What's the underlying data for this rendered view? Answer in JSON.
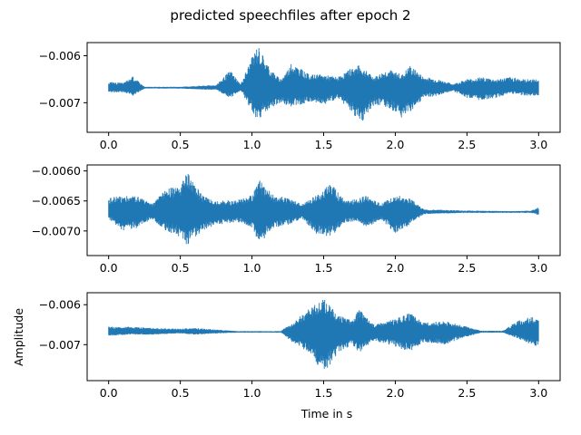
{
  "figure": {
    "suptitle": "predicted speechfiles after epoch 2",
    "xlabel": "Time in s",
    "ylabel": "Amplitude"
  },
  "colors": {
    "line": "#1f77b4",
    "axes": "#000000",
    "background": "#ffffff"
  },
  "chart_data": [
    {
      "type": "line",
      "title": "",
      "xlabel": "",
      "ylabel": "",
      "xlim": [
        -0.15,
        3.15
      ],
      "ylim": [
        -0.00763,
        -0.00572
      ],
      "x_ticks": [
        0.0,
        0.5,
        1.0,
        1.5,
        2.0,
        2.5,
        3.0
      ],
      "x_tick_labels": [
        "0.0",
        "0.5",
        "1.0",
        "1.5",
        "2.0",
        "2.5",
        "3.0"
      ],
      "y_ticks": [
        -0.006,
        -0.007
      ],
      "y_tick_labels": [
        "−0.006",
        "−0.007"
      ],
      "grid": false,
      "baseline": -0.00668,
      "envelope": [
        {
          "t": 0.0,
          "min": -0.00679,
          "max": -0.00655
        },
        {
          "t": 0.1,
          "min": -0.00678,
          "max": -0.00658
        },
        {
          "t": 0.17,
          "min": -0.00685,
          "max": -0.00644
        },
        {
          "t": 0.25,
          "min": -0.0067,
          "max": -0.00666
        },
        {
          "t": 0.5,
          "min": -0.0067,
          "max": -0.00666
        },
        {
          "t": 0.75,
          "min": -0.00673,
          "max": -0.00662
        },
        {
          "t": 0.85,
          "min": -0.0069,
          "max": -0.0063
        },
        {
          "t": 0.92,
          "min": -0.00674,
          "max": -0.0066
        },
        {
          "t": 1.04,
          "min": -0.0074,
          "max": -0.00575
        },
        {
          "t": 1.12,
          "min": -0.00715,
          "max": -0.00625
        },
        {
          "t": 1.2,
          "min": -0.007,
          "max": -0.0065
        },
        {
          "t": 1.28,
          "min": -0.0071,
          "max": -0.00615
        },
        {
          "t": 1.4,
          "min": -0.00698,
          "max": -0.0064
        },
        {
          "t": 1.5,
          "min": -0.00705,
          "max": -0.0064
        },
        {
          "t": 1.6,
          "min": -0.0069,
          "max": -0.00645
        },
        {
          "t": 1.7,
          "min": -0.0072,
          "max": -0.00625
        },
        {
          "t": 1.75,
          "min": -0.0075,
          "max": -0.0062
        },
        {
          "t": 1.85,
          "min": -0.00705,
          "max": -0.00645
        },
        {
          "t": 1.95,
          "min": -0.0071,
          "max": -0.00628
        },
        {
          "t": 2.05,
          "min": -0.00735,
          "max": -0.0064
        },
        {
          "t": 2.1,
          "min": -0.0072,
          "max": -0.0062
        },
        {
          "t": 2.2,
          "min": -0.0069,
          "max": -0.00645
        },
        {
          "t": 2.3,
          "min": -0.00685,
          "max": -0.0065
        },
        {
          "t": 2.4,
          "min": -0.00675,
          "max": -0.0066
        },
        {
          "t": 2.5,
          "min": -0.0069,
          "max": -0.0065
        },
        {
          "t": 2.6,
          "min": -0.00695,
          "max": -0.00645
        },
        {
          "t": 2.7,
          "min": -0.0069,
          "max": -0.0065
        },
        {
          "t": 2.8,
          "min": -0.0068,
          "max": -0.00645
        },
        {
          "t": 2.9,
          "min": -0.00685,
          "max": -0.0065
        },
        {
          "t": 3.0,
          "min": -0.00685,
          "max": -0.0065
        }
      ]
    },
    {
      "type": "line",
      "title": "",
      "xlabel": "",
      "ylabel": "",
      "xlim": [
        -0.15,
        3.15
      ],
      "ylim": [
        -0.00741,
        -0.0059
      ],
      "x_ticks": [
        0.0,
        0.5,
        1.0,
        1.5,
        2.0,
        2.5,
        3.0
      ],
      "x_tick_labels": [
        "0.0",
        "0.5",
        "1.0",
        "1.5",
        "2.0",
        "2.5",
        "3.0"
      ],
      "y_ticks": [
        -0.006,
        -0.0065,
        -0.007
      ],
      "y_tick_labels": [
        "−0.0060",
        "−0.0065",
        "−0.0070"
      ],
      "grid": false,
      "baseline": -0.00668,
      "envelope": [
        {
          "t": 0.0,
          "min": -0.0068,
          "max": -0.00645
        },
        {
          "t": 0.1,
          "min": -0.007,
          "max": -0.0064
        },
        {
          "t": 0.2,
          "min": -0.00695,
          "max": -0.0064
        },
        {
          "t": 0.3,
          "min": -0.0068,
          "max": -0.00655
        },
        {
          "t": 0.4,
          "min": -0.007,
          "max": -0.0063
        },
        {
          "t": 0.5,
          "min": -0.0071,
          "max": -0.00625
        },
        {
          "t": 0.55,
          "min": -0.00725,
          "max": -0.006
        },
        {
          "t": 0.65,
          "min": -0.007,
          "max": -0.0064
        },
        {
          "t": 0.75,
          "min": -0.0069,
          "max": -0.0065
        },
        {
          "t": 0.9,
          "min": -0.00685,
          "max": -0.00648
        },
        {
          "t": 1.0,
          "min": -0.00695,
          "max": -0.0064
        },
        {
          "t": 1.05,
          "min": -0.00725,
          "max": -0.00615
        },
        {
          "t": 1.15,
          "min": -0.00695,
          "max": -0.0064
        },
        {
          "t": 1.25,
          "min": -0.0069,
          "max": -0.00645
        },
        {
          "t": 1.35,
          "min": -0.0068,
          "max": -0.00655
        },
        {
          "t": 1.45,
          "min": -0.00705,
          "max": -0.0064
        },
        {
          "t": 1.55,
          "min": -0.0071,
          "max": -0.0062
        },
        {
          "t": 1.65,
          "min": -0.00685,
          "max": -0.0065
        },
        {
          "t": 1.75,
          "min": -0.00685,
          "max": -0.00645
        },
        {
          "t": 1.8,
          "min": -0.00695,
          "max": -0.0064
        },
        {
          "t": 1.9,
          "min": -0.0068,
          "max": -0.00655
        },
        {
          "t": 2.0,
          "min": -0.00705,
          "max": -0.0064
        },
        {
          "t": 2.1,
          "min": -0.0069,
          "max": -0.00645
        },
        {
          "t": 2.2,
          "min": -0.00672,
          "max": -0.00664
        },
        {
          "t": 2.5,
          "min": -0.0067,
          "max": -0.00666
        },
        {
          "t": 2.8,
          "min": -0.0067,
          "max": -0.00667
        },
        {
          "t": 2.95,
          "min": -0.0067,
          "max": -0.00666
        },
        {
          "t": 3.0,
          "min": -0.00674,
          "max": -0.0066
        }
      ]
    },
    {
      "type": "line",
      "title": "",
      "xlabel": "Time in s",
      "ylabel": "Amplitude",
      "xlim": [
        -0.15,
        3.15
      ],
      "ylim": [
        -0.0079,
        -0.0057
      ],
      "x_ticks": [
        0.0,
        0.5,
        1.0,
        1.5,
        2.0,
        2.5,
        3.0
      ],
      "x_tick_labels": [
        "0.0",
        "0.5",
        "1.0",
        "1.5",
        "2.0",
        "2.5",
        "3.0"
      ],
      "y_ticks": [
        -0.006,
        -0.007
      ],
      "y_tick_labels": [
        "−0.006",
        "−0.007"
      ],
      "grid": false,
      "baseline": -0.00668,
      "envelope": [
        {
          "t": 0.0,
          "min": -0.00678,
          "max": -0.00655
        },
        {
          "t": 0.15,
          "min": -0.00675,
          "max": -0.00655
        },
        {
          "t": 0.3,
          "min": -0.00675,
          "max": -0.00658
        },
        {
          "t": 0.5,
          "min": -0.00672,
          "max": -0.0066
        },
        {
          "t": 0.6,
          "min": -0.00675,
          "max": -0.00658
        },
        {
          "t": 0.75,
          "min": -0.00672,
          "max": -0.00662
        },
        {
          "t": 0.9,
          "min": -0.0067,
          "max": -0.00666
        },
        {
          "t": 1.2,
          "min": -0.0067,
          "max": -0.00666
        },
        {
          "t": 1.3,
          "min": -0.007,
          "max": -0.0064
        },
        {
          "t": 1.4,
          "min": -0.0072,
          "max": -0.0061
        },
        {
          "t": 1.5,
          "min": -0.00775,
          "max": -0.00585
        },
        {
          "t": 1.6,
          "min": -0.0072,
          "max": -0.00625
        },
        {
          "t": 1.7,
          "min": -0.007,
          "max": -0.0064
        },
        {
          "t": 1.75,
          "min": -0.0072,
          "max": -0.0061
        },
        {
          "t": 1.85,
          "min": -0.0069,
          "max": -0.0065
        },
        {
          "t": 2.0,
          "min": -0.00705,
          "max": -0.00635
        },
        {
          "t": 2.1,
          "min": -0.0072,
          "max": -0.0062
        },
        {
          "t": 2.2,
          "min": -0.00695,
          "max": -0.00645
        },
        {
          "t": 2.35,
          "min": -0.007,
          "max": -0.0064
        },
        {
          "t": 2.45,
          "min": -0.00685,
          "max": -0.0065
        },
        {
          "t": 2.6,
          "min": -0.0067,
          "max": -0.00665
        },
        {
          "t": 2.75,
          "min": -0.0067,
          "max": -0.00665
        },
        {
          "t": 2.85,
          "min": -0.00685,
          "max": -0.0064
        },
        {
          "t": 2.95,
          "min": -0.007,
          "max": -0.0063
        },
        {
          "t": 3.0,
          "min": -0.00705,
          "max": -0.00635
        }
      ]
    }
  ]
}
